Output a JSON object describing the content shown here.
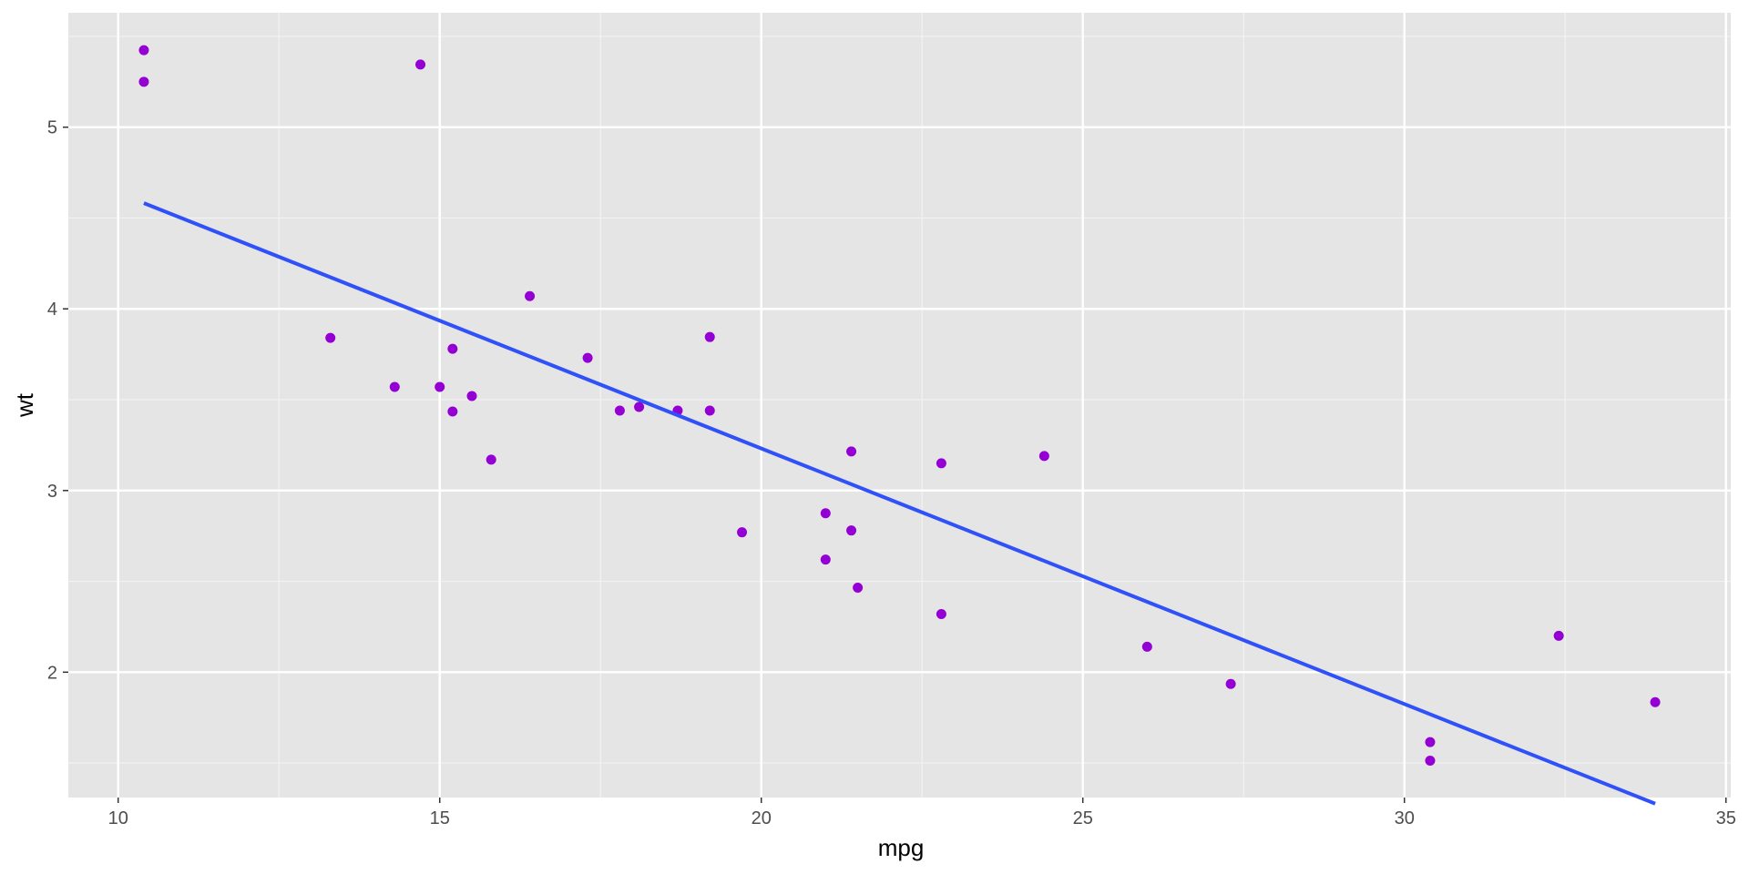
{
  "chart_data": {
    "type": "scatter",
    "title": "",
    "xlabel": "mpg",
    "ylabel": "wt",
    "xlim": [
      9.225,
      35.075
    ],
    "ylim": [
      1.31,
      5.63
    ],
    "x_ticks": [
      10,
      15,
      20,
      25,
      30,
      35
    ],
    "x_tick_labels": [
      "10",
      "15",
      "20",
      "25",
      "30",
      "35"
    ],
    "y_ticks": [
      2,
      3,
      4,
      5
    ],
    "y_tick_labels": [
      "2",
      "3",
      "4",
      "5"
    ],
    "grid": true,
    "legend": "none",
    "point_color": "#9400D3",
    "line_color": "#3050F8",
    "panel_background": "#E5E5E5",
    "points": [
      {
        "x": 21.0,
        "y": 2.62
      },
      {
        "x": 21.0,
        "y": 2.875
      },
      {
        "x": 22.8,
        "y": 2.32
      },
      {
        "x": 21.4,
        "y": 3.215
      },
      {
        "x": 18.7,
        "y": 3.44
      },
      {
        "x": 18.1,
        "y": 3.46
      },
      {
        "x": 14.3,
        "y": 3.57
      },
      {
        "x": 24.4,
        "y": 3.19
      },
      {
        "x": 22.8,
        "y": 3.15
      },
      {
        "x": 19.2,
        "y": 3.44
      },
      {
        "x": 17.8,
        "y": 3.44
      },
      {
        "x": 16.4,
        "y": 4.07
      },
      {
        "x": 17.3,
        "y": 3.73
      },
      {
        "x": 15.2,
        "y": 3.78
      },
      {
        "x": 10.4,
        "y": 5.25
      },
      {
        "x": 10.4,
        "y": 5.424
      },
      {
        "x": 14.7,
        "y": 5.345
      },
      {
        "x": 32.4,
        "y": 2.2
      },
      {
        "x": 30.4,
        "y": 1.615
      },
      {
        "x": 33.9,
        "y": 1.835
      },
      {
        "x": 21.5,
        "y": 2.465
      },
      {
        "x": 15.5,
        "y": 3.52
      },
      {
        "x": 15.2,
        "y": 3.435
      },
      {
        "x": 13.3,
        "y": 3.84
      },
      {
        "x": 19.2,
        "y": 3.845
      },
      {
        "x": 27.3,
        "y": 1.935
      },
      {
        "x": 26.0,
        "y": 2.14
      },
      {
        "x": 30.4,
        "y": 1.513
      },
      {
        "x": 15.8,
        "y": 3.17
      },
      {
        "x": 19.7,
        "y": 2.77
      },
      {
        "x": 15.0,
        "y": 3.57
      },
      {
        "x": 21.4,
        "y": 2.78
      }
    ],
    "regression_line": {
      "x": [
        10.4,
        33.9
      ],
      "y": [
        4.582,
        1.276
      ]
    }
  }
}
